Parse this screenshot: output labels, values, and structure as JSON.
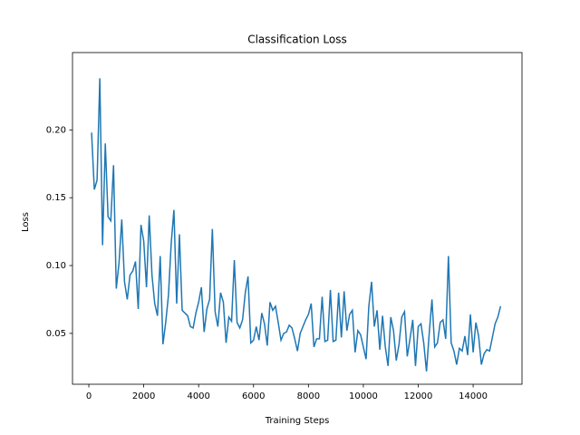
{
  "chart_data": {
    "type": "line",
    "title": "Classification Loss",
    "x_label": "Training Steps",
    "y_label": "Loss",
    "x": [
      100,
      200,
      300,
      400,
      500,
      600,
      700,
      800,
      900,
      1000,
      1100,
      1200,
      1300,
      1400,
      1500,
      1600,
      1700,
      1800,
      1900,
      2000,
      2100,
      2200,
      2300,
      2400,
      2500,
      2600,
      2700,
      2800,
      2900,
      3000,
      3100,
      3200,
      3300,
      3400,
      3500,
      3600,
      3700,
      3800,
      3900,
      4000,
      4100,
      4200,
      4300,
      4400,
      4500,
      4600,
      4700,
      4800,
      4900,
      5000,
      5100,
      5200,
      5300,
      5400,
      5500,
      5600,
      5700,
      5800,
      5900,
      6000,
      6100,
      6200,
      6300,
      6400,
      6500,
      6600,
      6700,
      6800,
      6900,
      7000,
      7100,
      7200,
      7300,
      7400,
      7500,
      7600,
      7700,
      7800,
      7900,
      8000,
      8100,
      8200,
      8300,
      8400,
      8500,
      8600,
      8700,
      8800,
      8900,
      9000,
      9100,
      9200,
      9300,
      9400,
      9500,
      9600,
      9700,
      9800,
      9900,
      10000,
      10100,
      10200,
      10300,
      10400,
      10500,
      10600,
      10700,
      10800,
      10900,
      11000,
      11100,
      11200,
      11300,
      11400,
      11500,
      11600,
      11700,
      11800,
      11900,
      12000,
      12100,
      12200,
      12300,
      12400,
      12500,
      12600,
      12700,
      12800,
      12900,
      13000,
      13100,
      13200,
      13300,
      13400,
      13500,
      13600,
      13700,
      13800,
      13900,
      14000,
      14100,
      14200,
      14300,
      14400,
      14500,
      14600,
      14700,
      14800,
      14900,
      15000
    ],
    "series": [
      {
        "name": "Loss",
        "color": "#1f77b4",
        "values": [
          0.198,
          0.156,
          0.163,
          0.238,
          0.115,
          0.19,
          0.136,
          0.133,
          0.174,
          0.083,
          0.102,
          0.134,
          0.088,
          0.075,
          0.093,
          0.096,
          0.103,
          0.068,
          0.13,
          0.118,
          0.084,
          0.137,
          0.093,
          0.072,
          0.063,
          0.107,
          0.042,
          0.058,
          0.078,
          0.116,
          0.141,
          0.072,
          0.123,
          0.067,
          0.065,
          0.063,
          0.055,
          0.054,
          0.065,
          0.073,
          0.084,
          0.051,
          0.068,
          0.075,
          0.127,
          0.066,
          0.055,
          0.08,
          0.073,
          0.043,
          0.062,
          0.059,
          0.104,
          0.058,
          0.054,
          0.06,
          0.08,
          0.092,
          0.043,
          0.045,
          0.055,
          0.045,
          0.065,
          0.057,
          0.041,
          0.073,
          0.067,
          0.07,
          0.058,
          0.045,
          0.05,
          0.051,
          0.056,
          0.054,
          0.046,
          0.037,
          0.05,
          0.055,
          0.06,
          0.064,
          0.072,
          0.04,
          0.046,
          0.046,
          0.077,
          0.044,
          0.045,
          0.082,
          0.044,
          0.045,
          0.08,
          0.047,
          0.081,
          0.052,
          0.064,
          0.067,
          0.036,
          0.052,
          0.049,
          0.04,
          0.031,
          0.07,
          0.088,
          0.055,
          0.067,
          0.038,
          0.063,
          0.04,
          0.026,
          0.062,
          0.052,
          0.03,
          0.042,
          0.062,
          0.066,
          0.033,
          0.046,
          0.06,
          0.026,
          0.055,
          0.057,
          0.043,
          0.022,
          0.05,
          0.075,
          0.04,
          0.043,
          0.058,
          0.06,
          0.046,
          0.107,
          0.043,
          0.037,
          0.027,
          0.039,
          0.037,
          0.048,
          0.034,
          0.064,
          0.036,
          0.058,
          0.048,
          0.027,
          0.035,
          0.038,
          0.037,
          0.047,
          0.057,
          0.062,
          0.07
        ]
      }
    ],
    "xlim": [
      -595,
      15780
    ],
    "ylim": [
      0.0125,
      0.257
    ],
    "xticks": [
      0,
      2000,
      4000,
      6000,
      8000,
      10000,
      12000,
      14000
    ],
    "yticks": [
      0.05,
      {
        "value": 0.1,
        "label": "0.10"
      },
      0.15,
      {
        "value": 0.2,
        "label": "0.20"
      }
    ]
  }
}
